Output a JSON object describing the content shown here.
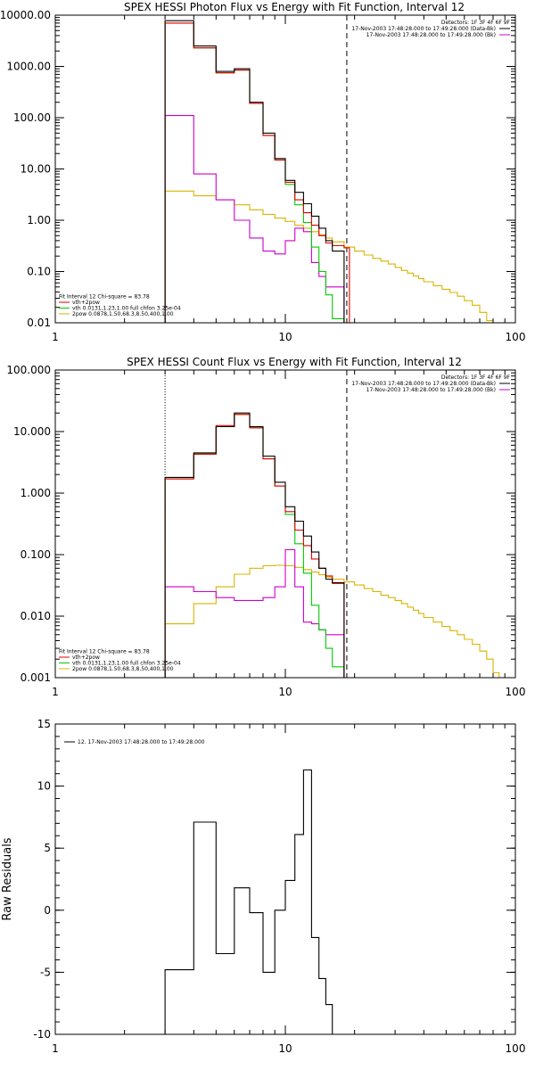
{
  "colors": {
    "data": "#000000",
    "vth_2pow": "#e00000",
    "vth": "#00cc00",
    "2pow": "#d9b400",
    "background": "#cc00cc",
    "residual": "#000000"
  },
  "chart_data": [
    {
      "type": "line",
      "title": "SPEX HESSI Photon Flux vs Energy with Fit Function, Interval 12",
      "xlabel": "",
      "ylabel": "",
      "xscale": "log",
      "yscale": "log",
      "xlim": [
        1,
        100
      ],
      "ylim": [
        0.01,
        10000
      ],
      "grid": false,
      "xticks": [
        1,
        10,
        100
      ],
      "xtick_labels": [
        "1",
        "10",
        "100"
      ],
      "yticks": [
        0.01,
        0.1,
        1,
        10,
        100,
        1000,
        10000
      ],
      "ytick_labels": [
        "0.01",
        "0.10",
        "1.00",
        "10.00",
        "100.00",
        "1000.00",
        "10000.00"
      ],
      "vlines": [
        {
          "x": 3.0,
          "style": "dotted",
          "color": "#d9b400"
        },
        {
          "x": 18.5,
          "style": "dashed",
          "color": "#000000"
        }
      ],
      "info": {
        "placement": "top-right",
        "lines": [
          "Detectors: 1F 3F 4F 6F 9F"
        ],
        "entries": [
          {
            "label": "17-Nov-2003 17:48:28.000 to 17:49:28.000 (Data-Bk)",
            "color": "#000000"
          },
          {
            "label": "17-Nov-2003 17:48:28.000 to 17:49:28.000 (Bk)",
            "color": "#cc00cc"
          }
        ]
      },
      "legend": {
        "placement": "bottom-left",
        "header": "Fit Interval 12    Chi-square = 83.78",
        "entries": [
          {
            "label": "vth+2pow",
            "color": "#e00000"
          },
          {
            "label": "vth 0.0131,1.23,1.00  full chfon 3.25e-04",
            "color": "#00cc00"
          },
          {
            "label": "2pow 0.0878,1.50,68.3,8.50,400,1.00",
            "color": "#d9b400"
          }
        ]
      },
      "series": [
        {
          "key": "data",
          "color": "#000000",
          "edges": [
            3,
            4,
            5,
            6,
            7,
            8,
            9,
            10,
            11,
            12,
            13,
            14,
            15,
            16,
            18
          ],
          "values": [
            7800,
            2500,
            800,
            900,
            200,
            50,
            16,
            6,
            3.5,
            2.1,
            1.2,
            0.7,
            0.4,
            0.25
          ]
        },
        {
          "key": "vth_2pow",
          "color": "#e00000",
          "edges": [
            3,
            4,
            5,
            6,
            7,
            8,
            9,
            10,
            11,
            12,
            13,
            14,
            15,
            16,
            18,
            19
          ],
          "values": [
            7000,
            2300,
            750,
            850,
            190,
            45,
            15,
            5.5,
            2.5,
            1.4,
            0.8,
            0.5,
            0.36,
            0.32,
            0.29
          ]
        },
        {
          "key": "vth",
          "color": "#00cc00",
          "edges": [
            3,
            4,
            5,
            6,
            7,
            8,
            9,
            10,
            11,
            12,
            13,
            14,
            15,
            16,
            18
          ],
          "values": [
            7000,
            2300,
            750,
            850,
            190,
            45,
            15,
            5,
            2,
            0.9,
            0.3,
            0.1,
            0.035,
            0.012
          ]
        },
        {
          "key": "2pow",
          "color": "#d9b400",
          "edges": [
            3,
            4,
            5,
            6,
            7,
            8,
            9,
            10,
            11,
            12,
            13,
            14,
            15,
            16,
            18,
            20,
            22,
            24,
            26,
            28,
            30,
            32,
            34,
            36,
            38,
            40,
            44,
            48,
            52,
            56,
            60,
            65,
            70,
            75,
            80
          ],
          "values": [
            3.7,
            3.0,
            2.5,
            2.0,
            1.6,
            1.3,
            1.1,
            0.95,
            0.8,
            0.7,
            0.6,
            0.52,
            0.45,
            0.38,
            0.3,
            0.25,
            0.21,
            0.18,
            0.16,
            0.14,
            0.12,
            0.105,
            0.093,
            0.082,
            0.073,
            0.063,
            0.053,
            0.045,
            0.039,
            0.033,
            0.027,
            0.022,
            0.016,
            0.011
          ]
        },
        {
          "key": "background",
          "color": "#cc00cc",
          "edges": [
            3,
            4,
            5,
            6,
            7,
            8,
            9,
            10,
            11,
            12,
            13,
            14,
            15,
            16,
            18
          ],
          "values": [
            110,
            8,
            2.5,
            1.0,
            0.45,
            0.25,
            0.22,
            0.4,
            0.7,
            0.6,
            0.15,
            0.08,
            0.05,
            0.05
          ]
        }
      ]
    },
    {
      "type": "line",
      "title": "SPEX HESSI Count Flux vs Energy with Fit Function, Interval 12",
      "xlabel": "",
      "ylabel": "",
      "xscale": "log",
      "yscale": "log",
      "xlim": [
        1,
        100
      ],
      "ylim": [
        0.001,
        100
      ],
      "grid": false,
      "xticks": [
        1,
        10,
        100
      ],
      "xtick_labels": [
        "1",
        "10",
        "100"
      ],
      "yticks": [
        0.001,
        0.01,
        0.1,
        1,
        10,
        100
      ],
      "ytick_labels": [
        "0.001",
        "0.010",
        "0.100",
        "1.000",
        "10.000",
        "100.000"
      ],
      "vlines": [
        {
          "x": 3.0,
          "style": "dotted",
          "color": "#000000"
        },
        {
          "x": 18.5,
          "style": "dashed",
          "color": "#000000"
        }
      ],
      "info": {
        "placement": "top-right",
        "lines": [
          "Detectors: 1F 3F 4F 6F 9F"
        ],
        "entries": [
          {
            "label": "17-Nov-2003 17:48:28.000 to 17:49:28.000 (Data-Bk)",
            "color": "#000000"
          },
          {
            "label": "17-Nov-2003 17:48:28.000 to 17:49:28.000 (Bk)",
            "color": "#cc00cc"
          }
        ]
      },
      "legend": {
        "placement": "bottom-left",
        "header": "Fit Interval 12    Chi-square = 83.78",
        "entries": [
          {
            "label": "vth+2pow",
            "color": "#e00000"
          },
          {
            "label": "vth 0.0131,1.23,1.00  full chfon 3.25e-04",
            "color": "#00cc00"
          },
          {
            "label": "2pow 0.0878,1.50,68.3,8.50,400,1.00",
            "color": "#d9b400"
          }
        ]
      },
      "series": [
        {
          "key": "data",
          "color": "#000000",
          "edges": [
            3,
            4,
            5,
            6,
            7,
            8,
            9,
            10,
            11,
            12,
            13,
            14,
            15,
            16,
            18
          ],
          "values": [
            1.8,
            4.5,
            12,
            20,
            12,
            4,
            1.5,
            0.6,
            0.35,
            0.2,
            0.11,
            0.06,
            0.04,
            0.035
          ]
        },
        {
          "key": "vth_2pow",
          "color": "#e00000",
          "edges": [
            3,
            4,
            5,
            6,
            7,
            8,
            9,
            10,
            11,
            12,
            13,
            14,
            15,
            16,
            18
          ],
          "values": [
            1.7,
            4.3,
            12.5,
            19,
            11.5,
            3.6,
            1.3,
            0.5,
            0.25,
            0.14,
            0.085,
            0.06,
            0.045,
            0.034
          ]
        },
        {
          "key": "vth",
          "color": "#00cc00",
          "edges": [
            3,
            4,
            5,
            6,
            7,
            8,
            9,
            10,
            11,
            12,
            13,
            14,
            15,
            16,
            18
          ],
          "values": [
            1.7,
            4.3,
            12,
            19,
            11.5,
            3.6,
            1.3,
            0.45,
            0.15,
            0.05,
            0.015,
            0.006,
            0.003,
            0.0015
          ]
        },
        {
          "key": "2pow",
          "color": "#d9b400",
          "edges": [
            3,
            4,
            5,
            6,
            7,
            8,
            9,
            10,
            11,
            12,
            13,
            14,
            15,
            16,
            18,
            20,
            22,
            24,
            26,
            28,
            30,
            32,
            34,
            36,
            38,
            40,
            44,
            48,
            52,
            56,
            60,
            65,
            70,
            75,
            80,
            85,
            90
          ],
          "values": [
            0.0075,
            0.016,
            0.03,
            0.048,
            0.06,
            0.066,
            0.067,
            0.066,
            0.062,
            0.057,
            0.052,
            0.047,
            0.043,
            0.04,
            0.036,
            0.032,
            0.028,
            0.025,
            0.022,
            0.02,
            0.018,
            0.016,
            0.014,
            0.0125,
            0.011,
            0.0095,
            0.008,
            0.0068,
            0.0058,
            0.005,
            0.0042,
            0.0035,
            0.0027,
            0.002,
            0.0012,
            0.001
          ]
        },
        {
          "key": "background",
          "color": "#cc00cc",
          "edges": [
            3,
            4,
            5,
            6,
            7,
            8,
            9,
            10,
            11,
            12,
            13,
            14,
            15,
            16,
            18
          ],
          "values": [
            0.03,
            0.025,
            0.02,
            0.018,
            0.018,
            0.02,
            0.03,
            0.12,
            0.03,
            0.008,
            0.0075,
            0.006,
            0.005,
            0.005
          ]
        }
      ]
    },
    {
      "type": "line",
      "title": "",
      "xlabel": "",
      "ylabel": "Raw Residuals",
      "xscale": "log",
      "yscale": "linear",
      "xlim": [
        1,
        100
      ],
      "ylim": [
        -10,
        15
      ],
      "grid": false,
      "xticks": [
        1,
        10,
        100
      ],
      "xtick_labels": [
        "1",
        "10",
        "100"
      ],
      "yticks": [
        -10,
        -5,
        0,
        5,
        10,
        15
      ],
      "ytick_labels": [
        "-10",
        "-5",
        "0",
        "5",
        "10",
        "15"
      ],
      "legend": {
        "placement": "top-left",
        "entries": [
          {
            "label": "12. 17-Nov-2003 17:48:28.000 to 17:49:28.000",
            "color": "#000000"
          }
        ]
      },
      "series": [
        {
          "key": "residual",
          "color": "#000000",
          "edges": [
            3,
            4,
            5,
            6,
            7,
            8,
            9,
            10,
            11,
            12,
            13,
            14,
            15,
            16,
            18
          ],
          "values": [
            -4.8,
            7.1,
            -3.5,
            1.8,
            -0.2,
            -5,
            0,
            2.4,
            6.1,
            11.3,
            -2.2,
            -5.5,
            -7.6,
            -10
          ]
        }
      ]
    }
  ]
}
